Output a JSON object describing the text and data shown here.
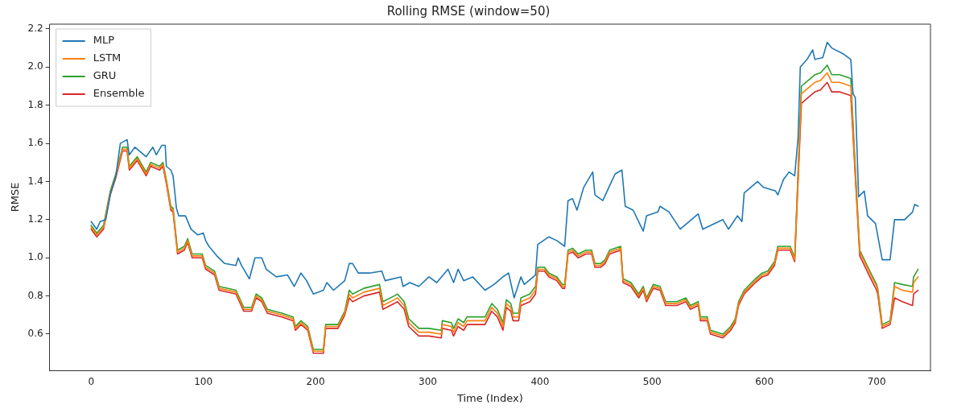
{
  "chart_data": {
    "type": "line",
    "title": "Rolling RMSE (window=50)",
    "xlabel": "Time (Index)",
    "ylabel": "RMSE",
    "xlim": [
      -37,
      748
    ],
    "xticks": [
      0,
      100,
      200,
      300,
      400,
      500,
      600,
      700
    ],
    "ylim": [
      0.41,
      2.225
    ],
    "yticks": [
      {
        "value": 0.6,
        "label": "0.6"
      },
      {
        "value": 0.8,
        "label": "0.8"
      },
      {
        "value": 1.0,
        "label": "1.0"
      },
      {
        "value": 1.2,
        "label": "1.2"
      },
      {
        "value": 1.4,
        "label": "1.4"
      },
      {
        "value": 1.6,
        "label": "1.6"
      },
      {
        "value": 1.8,
        "label": "1.8"
      },
      {
        "value": 2.0,
        "label": "2.0"
      },
      {
        "value": 2.2,
        "label": "2.2"
      }
    ],
    "grid": false,
    "legend": "top left",
    "marker": "none",
    "line_style": "solid",
    "series": [
      {
        "name": "MLP",
        "color": "#1f77b4",
        "x": [
          0,
          5,
          8,
          13,
          17,
          22,
          26,
          32,
          34,
          39,
          49,
          55,
          58,
          63,
          66,
          67,
          71,
          73,
          76,
          78,
          84,
          89,
          95,
          100,
          102,
          105,
          112,
          119,
          129,
          131,
          134,
          141,
          146,
          152,
          156,
          165,
          175,
          181,
          187,
          192,
          198,
          207,
          210,
          216,
          226,
          230,
          233,
          238,
          248,
          259,
          262,
          276,
          278,
          284,
          292,
          301,
          308,
          318,
          323,
          327,
          332,
          340,
          351,
          359,
          367,
          372,
          377,
          383,
          386,
          396,
          398,
          408,
          415,
          422,
          425,
          429,
          433,
          439,
          447,
          449,
          456,
          463,
          467,
          473,
          476,
          483,
          492,
          495,
          505,
          507,
          515,
          525,
          541,
          545,
          563,
          568,
          576,
          580,
          582,
          594,
          599,
          610,
          612,
          617,
          622,
          627,
          630,
          632,
          638,
          643,
          645,
          652,
          656,
          660,
          670,
          677,
          679,
          681,
          684,
          689,
          692,
          699,
          705,
          712,
          716,
          725,
          732,
          734,
          737
        ],
        "values": [
          1.19,
          1.15,
          1.19,
          1.2,
          1.33,
          1.43,
          1.6,
          1.62,
          1.54,
          1.58,
          1.53,
          1.58,
          1.54,
          1.59,
          1.59,
          1.48,
          1.46,
          1.43,
          1.26,
          1.22,
          1.22,
          1.15,
          1.12,
          1.13,
          1.09,
          1.06,
          1.01,
          0.97,
          0.96,
          1.0,
          0.96,
          0.89,
          1.0,
          1.0,
          0.94,
          0.9,
          0.91,
          0.85,
          0.92,
          0.88,
          0.81,
          0.83,
          0.87,
          0.83,
          0.88,
          0.97,
          0.97,
          0.92,
          0.92,
          0.93,
          0.88,
          0.9,
          0.85,
          0.87,
          0.85,
          0.9,
          0.87,
          0.94,
          0.87,
          0.94,
          0.88,
          0.9,
          0.83,
          0.86,
          0.9,
          0.92,
          0.79,
          0.9,
          0.86,
          0.91,
          1.07,
          1.11,
          1.09,
          1.06,
          1.3,
          1.31,
          1.25,
          1.37,
          1.45,
          1.33,
          1.3,
          1.39,
          1.44,
          1.46,
          1.27,
          1.25,
          1.14,
          1.22,
          1.24,
          1.27,
          1.24,
          1.15,
          1.23,
          1.15,
          1.2,
          1.15,
          1.22,
          1.19,
          1.34,
          1.4,
          1.37,
          1.35,
          1.33,
          1.41,
          1.45,
          1.43,
          1.63,
          2.0,
          2.04,
          2.09,
          2.04,
          2.05,
          2.13,
          2.1,
          2.07,
          2.04,
          1.86,
          1.84,
          1.32,
          1.35,
          1.22,
          1.18,
          0.99,
          0.99,
          1.2,
          1.2,
          1.24,
          1.28,
          1.27
        ]
      },
      {
        "name": "LSTM",
        "color": "#ff7f0e",
        "x": [
          0,
          5,
          11,
          17,
          22,
          28,
          32,
          34,
          41,
          49,
          53,
          61,
          64,
          67,
          71,
          73,
          77,
          83,
          86,
          90,
          99,
          102,
          110,
          114,
          129,
          136,
          143,
          147,
          152,
          157,
          170,
          180,
          182,
          187,
          193,
          198,
          207,
          209,
          220,
          226,
          230,
          233,
          243,
          257,
          260,
          270,
          273,
          279,
          283,
          292,
          301,
          312,
          313,
          321,
          323,
          327,
          332,
          335,
          351,
          357,
          362,
          367,
          370,
          374,
          376,
          381,
          383,
          391,
          396,
          398,
          404,
          408,
          415,
          420,
          422,
          425,
          429,
          434,
          441,
          446,
          449,
          454,
          458,
          462,
          472,
          474,
          481,
          488,
          492,
          495,
          501,
          507,
          512,
          522,
          530,
          534,
          541,
          543,
          549,
          552,
          563,
          570,
          574,
          577,
          582,
          592,
          598,
          603,
          609,
          612,
          623,
          627,
          633,
          639,
          645,
          650,
          656,
          660,
          667,
          677,
          682,
          685,
          694,
          700,
          701,
          705,
          712,
          716,
          723,
          732,
          733,
          737
        ],
        "values": [
          1.16,
          1.12,
          1.16,
          1.34,
          1.43,
          1.57,
          1.57,
          1.47,
          1.52,
          1.44,
          1.49,
          1.47,
          1.49,
          1.4,
          1.26,
          1.25,
          1.03,
          1.05,
          1.09,
          1.01,
          1.01,
          0.95,
          0.92,
          0.84,
          0.82,
          0.73,
          0.73,
          0.8,
          0.78,
          0.72,
          0.7,
          0.68,
          0.63,
          0.66,
          0.63,
          0.51,
          0.51,
          0.64,
          0.64,
          0.71,
          0.81,
          0.79,
          0.82,
          0.84,
          0.75,
          0.78,
          0.79,
          0.75,
          0.66,
          0.61,
          0.61,
          0.6,
          0.65,
          0.64,
          0.61,
          0.66,
          0.64,
          0.67,
          0.67,
          0.74,
          0.71,
          0.64,
          0.76,
          0.74,
          0.69,
          0.69,
          0.77,
          0.79,
          0.83,
          0.94,
          0.94,
          0.91,
          0.89,
          0.85,
          0.85,
          1.03,
          1.04,
          1.01,
          1.03,
          1.03,
          0.96,
          0.96,
          0.98,
          1.03,
          1.05,
          0.88,
          0.86,
          0.8,
          0.84,
          0.78,
          0.85,
          0.84,
          0.76,
          0.76,
          0.78,
          0.74,
          0.76,
          0.68,
          0.68,
          0.61,
          0.59,
          0.63,
          0.67,
          0.76,
          0.82,
          0.88,
          0.91,
          0.92,
          0.97,
          1.05,
          1.05,
          0.99,
          1.86,
          1.89,
          1.92,
          1.93,
          1.97,
          1.92,
          1.92,
          1.9,
          1.34,
          1.03,
          0.92,
          0.85,
          0.83,
          0.64,
          0.66,
          0.85,
          0.83,
          0.82,
          0.87,
          0.9
        ]
      },
      {
        "name": "GRU",
        "color": "#2ca02c",
        "x": [
          0,
          5,
          11,
          17,
          22,
          28,
          32,
          34,
          41,
          49,
          53,
          61,
          64,
          67,
          71,
          73,
          77,
          83,
          86,
          90,
          99,
          102,
          110,
          114,
          129,
          136,
          143,
          147,
          152,
          157,
          170,
          180,
          182,
          187,
          193,
          198,
          207,
          209,
          220,
          226,
          230,
          233,
          243,
          257,
          260,
          270,
          273,
          279,
          283,
          292,
          301,
          312,
          313,
          321,
          323,
          327,
          332,
          335,
          351,
          357,
          362,
          367,
          370,
          374,
          376,
          381,
          383,
          391,
          396,
          398,
          404,
          408,
          415,
          420,
          422,
          425,
          429,
          434,
          441,
          446,
          449,
          454,
          458,
          462,
          472,
          474,
          481,
          488,
          492,
          495,
          501,
          507,
          512,
          522,
          530,
          534,
          541,
          543,
          549,
          552,
          563,
          570,
          574,
          577,
          582,
          592,
          598,
          603,
          609,
          612,
          623,
          627,
          633,
          639,
          645,
          650,
          656,
          660,
          667,
          677,
          682,
          685,
          694,
          700,
          701,
          705,
          712,
          716,
          723,
          732,
          733,
          737
        ],
        "values": [
          1.17,
          1.13,
          1.17,
          1.35,
          1.44,
          1.58,
          1.58,
          1.48,
          1.53,
          1.45,
          1.5,
          1.48,
          1.5,
          1.41,
          1.27,
          1.26,
          1.04,
          1.06,
          1.1,
          1.02,
          1.02,
          0.96,
          0.93,
          0.85,
          0.83,
          0.74,
          0.74,
          0.81,
          0.79,
          0.73,
          0.71,
          0.69,
          0.64,
          0.67,
          0.64,
          0.52,
          0.52,
          0.65,
          0.65,
          0.72,
          0.83,
          0.81,
          0.84,
          0.86,
          0.77,
          0.8,
          0.81,
          0.77,
          0.68,
          0.63,
          0.63,
          0.62,
          0.67,
          0.66,
          0.63,
          0.68,
          0.66,
          0.69,
          0.69,
          0.76,
          0.73,
          0.66,
          0.78,
          0.76,
          0.71,
          0.71,
          0.79,
          0.81,
          0.85,
          0.95,
          0.95,
          0.92,
          0.9,
          0.86,
          0.86,
          1.04,
          1.05,
          1.02,
          1.04,
          1.04,
          0.97,
          0.97,
          0.99,
          1.04,
          1.06,
          0.89,
          0.87,
          0.81,
          0.85,
          0.79,
          0.86,
          0.85,
          0.77,
          0.77,
          0.79,
          0.75,
          0.77,
          0.69,
          0.69,
          0.62,
          0.6,
          0.64,
          0.68,
          0.77,
          0.83,
          0.89,
          0.92,
          0.93,
          0.98,
          1.06,
          1.06,
          1.0,
          1.9,
          1.93,
          1.96,
          1.97,
          2.01,
          1.96,
          1.96,
          1.94,
          1.36,
          1.04,
          0.93,
          0.86,
          0.84,
          0.65,
          0.67,
          0.87,
          0.86,
          0.85,
          0.9,
          0.94
        ]
      },
      {
        "name": "Ensemble",
        "color": "#d62728",
        "x": [
          0,
          5,
          11,
          17,
          22,
          28,
          32,
          34,
          41,
          49,
          53,
          61,
          64,
          67,
          71,
          73,
          77,
          83,
          86,
          90,
          99,
          102,
          110,
          114,
          129,
          136,
          143,
          147,
          152,
          157,
          170,
          180,
          182,
          187,
          193,
          198,
          207,
          209,
          220,
          226,
          230,
          233,
          243,
          257,
          260,
          270,
          273,
          279,
          283,
          292,
          301,
          312,
          313,
          321,
          323,
          327,
          332,
          335,
          351,
          357,
          362,
          367,
          370,
          374,
          376,
          381,
          383,
          391,
          396,
          398,
          404,
          408,
          415,
          420,
          422,
          425,
          429,
          434,
          441,
          446,
          449,
          454,
          458,
          462,
          472,
          474,
          481,
          488,
          492,
          495,
          501,
          507,
          512,
          522,
          530,
          534,
          541,
          543,
          549,
          552,
          563,
          570,
          574,
          577,
          582,
          592,
          598,
          603,
          609,
          612,
          623,
          627,
          633,
          639,
          645,
          650,
          656,
          660,
          667,
          677,
          682,
          685,
          694,
          700,
          701,
          705,
          712,
          716,
          723,
          732,
          733,
          737
        ],
        "values": [
          1.15,
          1.11,
          1.15,
          1.33,
          1.42,
          1.56,
          1.56,
          1.46,
          1.51,
          1.43,
          1.48,
          1.46,
          1.48,
          1.39,
          1.25,
          1.24,
          1.02,
          1.04,
          1.08,
          1.0,
          1.0,
          0.94,
          0.91,
          0.83,
          0.81,
          0.72,
          0.72,
          0.79,
          0.77,
          0.71,
          0.69,
          0.67,
          0.62,
          0.65,
          0.62,
          0.5,
          0.5,
          0.63,
          0.63,
          0.7,
          0.79,
          0.77,
          0.8,
          0.82,
          0.73,
          0.76,
          0.77,
          0.73,
          0.64,
          0.59,
          0.59,
          0.58,
          0.63,
          0.62,
          0.59,
          0.64,
          0.62,
          0.65,
          0.65,
          0.72,
          0.69,
          0.62,
          0.74,
          0.72,
          0.67,
          0.67,
          0.75,
          0.77,
          0.81,
          0.93,
          0.93,
          0.9,
          0.88,
          0.84,
          0.84,
          1.02,
          1.03,
          1.0,
          1.02,
          1.02,
          0.95,
          0.95,
          0.97,
          1.02,
          1.04,
          0.87,
          0.85,
          0.79,
          0.83,
          0.77,
          0.84,
          0.83,
          0.75,
          0.75,
          0.77,
          0.73,
          0.75,
          0.67,
          0.67,
          0.6,
          0.58,
          0.62,
          0.66,
          0.75,
          0.81,
          0.87,
          0.9,
          0.91,
          0.96,
          1.04,
          1.04,
          0.98,
          1.81,
          1.84,
          1.87,
          1.88,
          1.92,
          1.87,
          1.87,
          1.85,
          1.32,
          1.01,
          0.9,
          0.83,
          0.81,
          0.63,
          0.65,
          0.79,
          0.77,
          0.75,
          0.81,
          0.83
        ]
      }
    ]
  }
}
